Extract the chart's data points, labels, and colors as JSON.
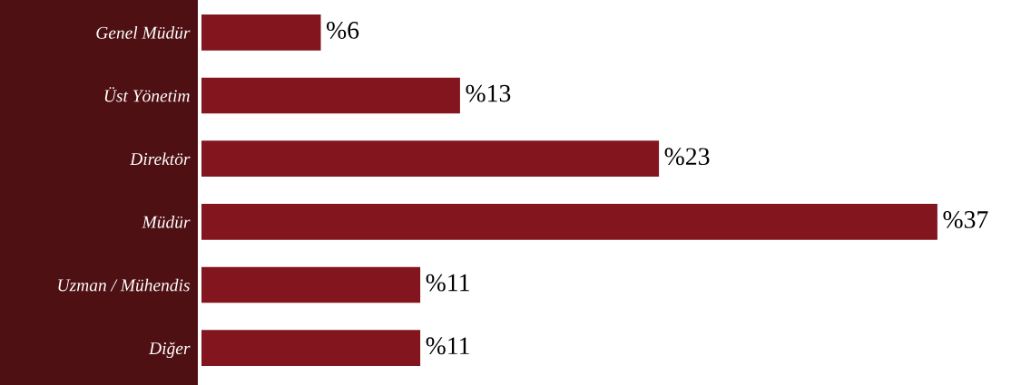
{
  "chart_data": {
    "type": "bar",
    "orientation": "horizontal",
    "categories": [
      "Genel Müdür",
      "Üst Yönetim",
      "Direktör",
      "Müdür",
      "Uzman / Mühendis",
      "Diğer"
    ],
    "values": [
      6,
      13,
      23,
      37,
      11,
      11
    ],
    "value_labels": [
      "%6",
      "%13",
      "%23",
      "%37",
      "%11",
      "%11"
    ],
    "color": "#83151f",
    "grid": false,
    "legend": false
  }
}
